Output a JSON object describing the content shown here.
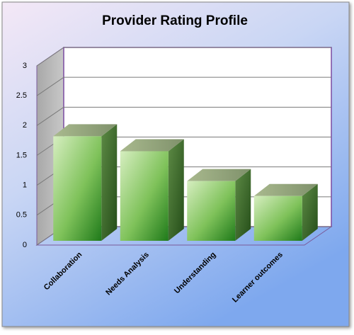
{
  "chart_data": {
    "type": "bar",
    "title": "Provider Rating Profile",
    "categories": [
      "Collaboration",
      "Needs Analysis",
      "Understanding",
      "Learner outcomes"
    ],
    "values": [
      1.75,
      1.5,
      1.0,
      0.75
    ],
    "color": "#4a9a2a",
    "ylim": [
      0,
      3
    ],
    "yticks": [
      0,
      0.5,
      1,
      1.5,
      2,
      2.5,
      3
    ],
    "grid": true
  }
}
